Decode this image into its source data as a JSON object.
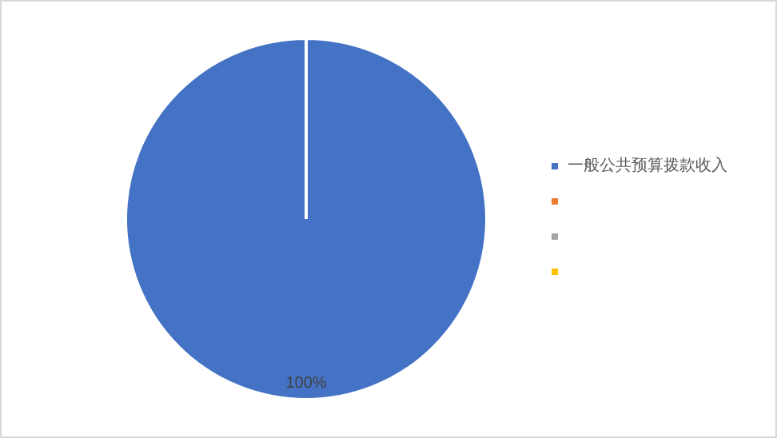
{
  "chart_data": {
    "type": "pie",
    "categories": [
      "一般公共预算拨款收入",
      null,
      null,
      null
    ],
    "values": [
      100,
      0,
      0,
      0
    ],
    "colors": [
      "#4472c4",
      "#ed7d31",
      "#a5a5a5",
      "#ffc000"
    ],
    "value_labels": [
      "100%",
      null,
      null,
      null
    ],
    "legend": "right"
  }
}
